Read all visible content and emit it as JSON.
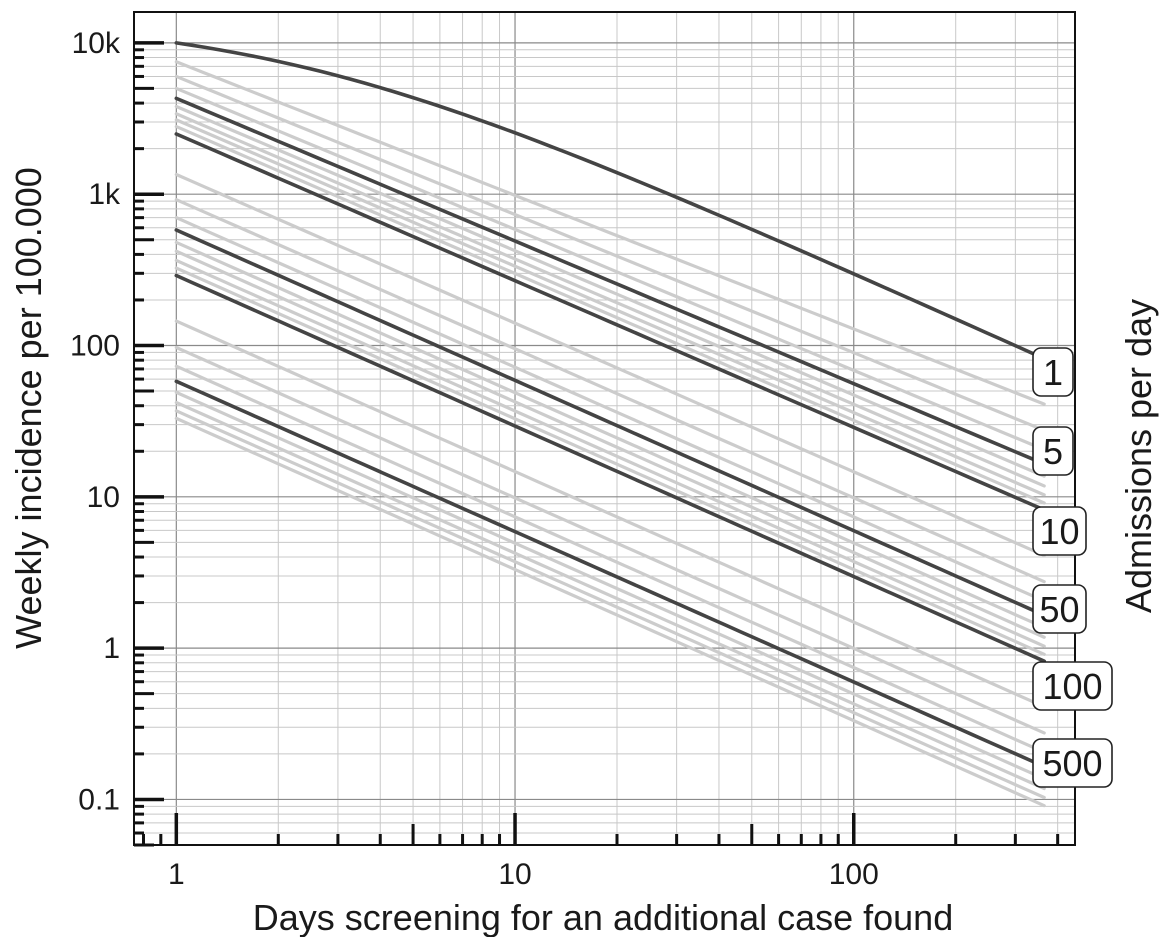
{
  "chart_data": {
    "type": "line",
    "title": "",
    "xlabel": "Days screening for an additional case found",
    "ylabel": "Weekly incidence per 100.000",
    "right_label": "Admissions per day",
    "xscale": "log",
    "yscale": "log",
    "xlim": [
      0.75,
      450
    ],
    "ylim": [
      0.05,
      16000
    ],
    "grid": true,
    "x_tick_labels": [
      {
        "value": 1,
        "label": "1"
      },
      {
        "value": 10,
        "label": "10"
      },
      {
        "value": 100,
        "label": "100"
      }
    ],
    "y_tick_labels": [
      {
        "value": 0.1,
        "label": "0.1"
      },
      {
        "value": 1,
        "label": "1"
      },
      {
        "value": 10,
        "label": "10"
      },
      {
        "value": 100,
        "label": "100"
      },
      {
        "value": 1000,
        "label": "1k"
      },
      {
        "value": 10000,
        "label": "10k"
      }
    ],
    "x_range": [
      1,
      365
    ],
    "highlighted_series": [
      {
        "label": "1",
        "admissions_per_day": 1,
        "start": 10000,
        "end": 82,
        "curved": true
      },
      {
        "label": "5",
        "admissions_per_day": 5,
        "start": 4300,
        "end": 16.5
      },
      {
        "label": "10",
        "admissions_per_day": 10,
        "start": 2500,
        "end": 8.2
      },
      {
        "label": "50",
        "admissions_per_day": 50,
        "start": 580,
        "end": 1.65
      },
      {
        "label": "100",
        "admissions_per_day": 100,
        "start": 290,
        "end": 0.82
      },
      {
        "label": "500",
        "admissions_per_day": 500,
        "start": 58,
        "end": 0.165
      }
    ],
    "background_series": [
      {
        "admissions_per_day": 2,
        "start": 7500,
        "end": 41
      },
      {
        "admissions_per_day": 3,
        "start": 6000,
        "end": 27.5
      },
      {
        "admissions_per_day": 4,
        "start": 5000,
        "end": 20.5
      },
      {
        "admissions_per_day": 6,
        "start": 3800,
        "end": 13.7
      },
      {
        "admissions_per_day": 7,
        "start": 3400,
        "end": 11.8
      },
      {
        "admissions_per_day": 8,
        "start": 3100,
        "end": 10.3
      },
      {
        "admissions_per_day": 9,
        "start": 2800,
        "end": 9.1
      },
      {
        "admissions_per_day": 20,
        "start": 1350,
        "end": 4.1
      },
      {
        "admissions_per_day": 30,
        "start": 920,
        "end": 2.75
      },
      {
        "admissions_per_day": 40,
        "start": 700,
        "end": 2.05
      },
      {
        "admissions_per_day": 60,
        "start": 480,
        "end": 1.37
      },
      {
        "admissions_per_day": 70,
        "start": 420,
        "end": 1.18
      },
      {
        "admissions_per_day": 80,
        "start": 365,
        "end": 1.03
      },
      {
        "admissions_per_day": 90,
        "start": 325,
        "end": 0.91
      },
      {
        "admissions_per_day": 200,
        "start": 145,
        "end": 0.41
      },
      {
        "admissions_per_day": 300,
        "start": 97,
        "end": 0.275
      },
      {
        "admissions_per_day": 400,
        "start": 73,
        "end": 0.205
      },
      {
        "admissions_per_day": 600,
        "start": 49,
        "end": 0.137
      },
      {
        "admissions_per_day": 700,
        "start": 42,
        "end": 0.118
      },
      {
        "admissions_per_day": 800,
        "start": 37,
        "end": 0.103
      },
      {
        "admissions_per_day": 900,
        "start": 33,
        "end": 0.091
      }
    ],
    "colors": {
      "highlight_line": "#444444",
      "background_line": "#cccccc",
      "major_grid": "#8a8a8a",
      "minor_grid": "#c8c8c8",
      "axis": "#111111",
      "badge_border": "#222222",
      "badge_fill": "#ffffff"
    }
  }
}
